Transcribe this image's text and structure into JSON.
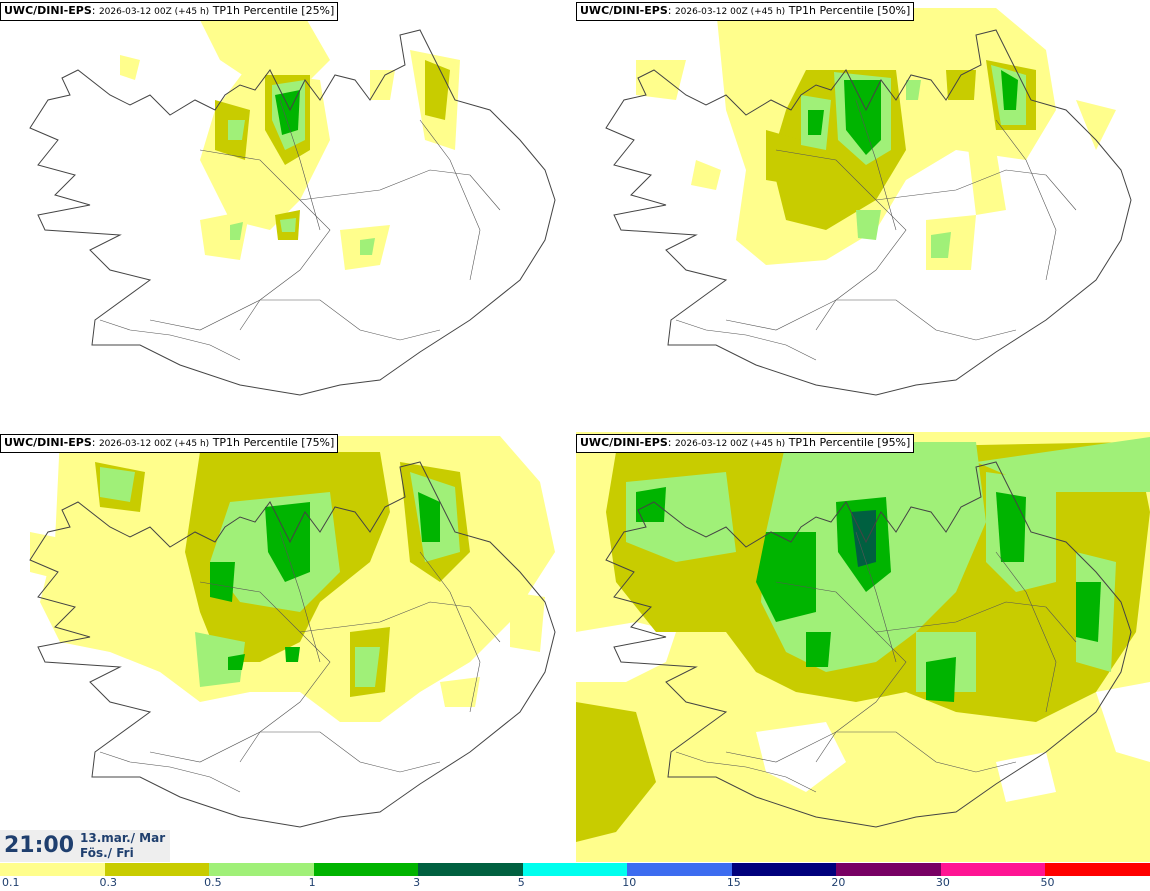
{
  "panels": [
    {
      "model": "UWC/DINI-EPS",
      "run": "2026-03-12 00Z (+45 h)",
      "field": "TP1h Percentile [25%]"
    },
    {
      "model": "UWC/DINI-EPS",
      "run": "2026-03-12 00Z (+45 h)",
      "field": "TP1h Percentile [50%]"
    },
    {
      "model": "UWC/DINI-EPS",
      "run": "2026-03-12 00Z (+45 h)",
      "field": "TP1h Percentile [75%]"
    },
    {
      "model": "UWC/DINI-EPS",
      "run": "2026-03-12 00Z (+45 h)",
      "field": "TP1h Percentile [95%]"
    }
  ],
  "valid_time": {
    "hour": "21:00",
    "date_line1": "13.mar./ Mar",
    "date_line2": "Fös./ Fri"
  },
  "legend": {
    "labels": [
      "0.1",
      "0.3",
      "0.5",
      "1",
      "3",
      "5",
      "10",
      "15",
      "20",
      "30",
      "50"
    ],
    "colors": [
      "#fffe8c",
      "#c8cc00",
      "#a0f078",
      "#00b400",
      "#006040",
      "#00ffee",
      "#3c6cf0",
      "#00007c",
      "#780064",
      "#ff1493",
      "#ff0000"
    ]
  },
  "map_colors": {
    "coast": "#444444",
    "light": "#fffe8c",
    "mid": "#c8cc00",
    "pale_green": "#a0f078",
    "green": "#00b400",
    "dark": "#006040"
  }
}
